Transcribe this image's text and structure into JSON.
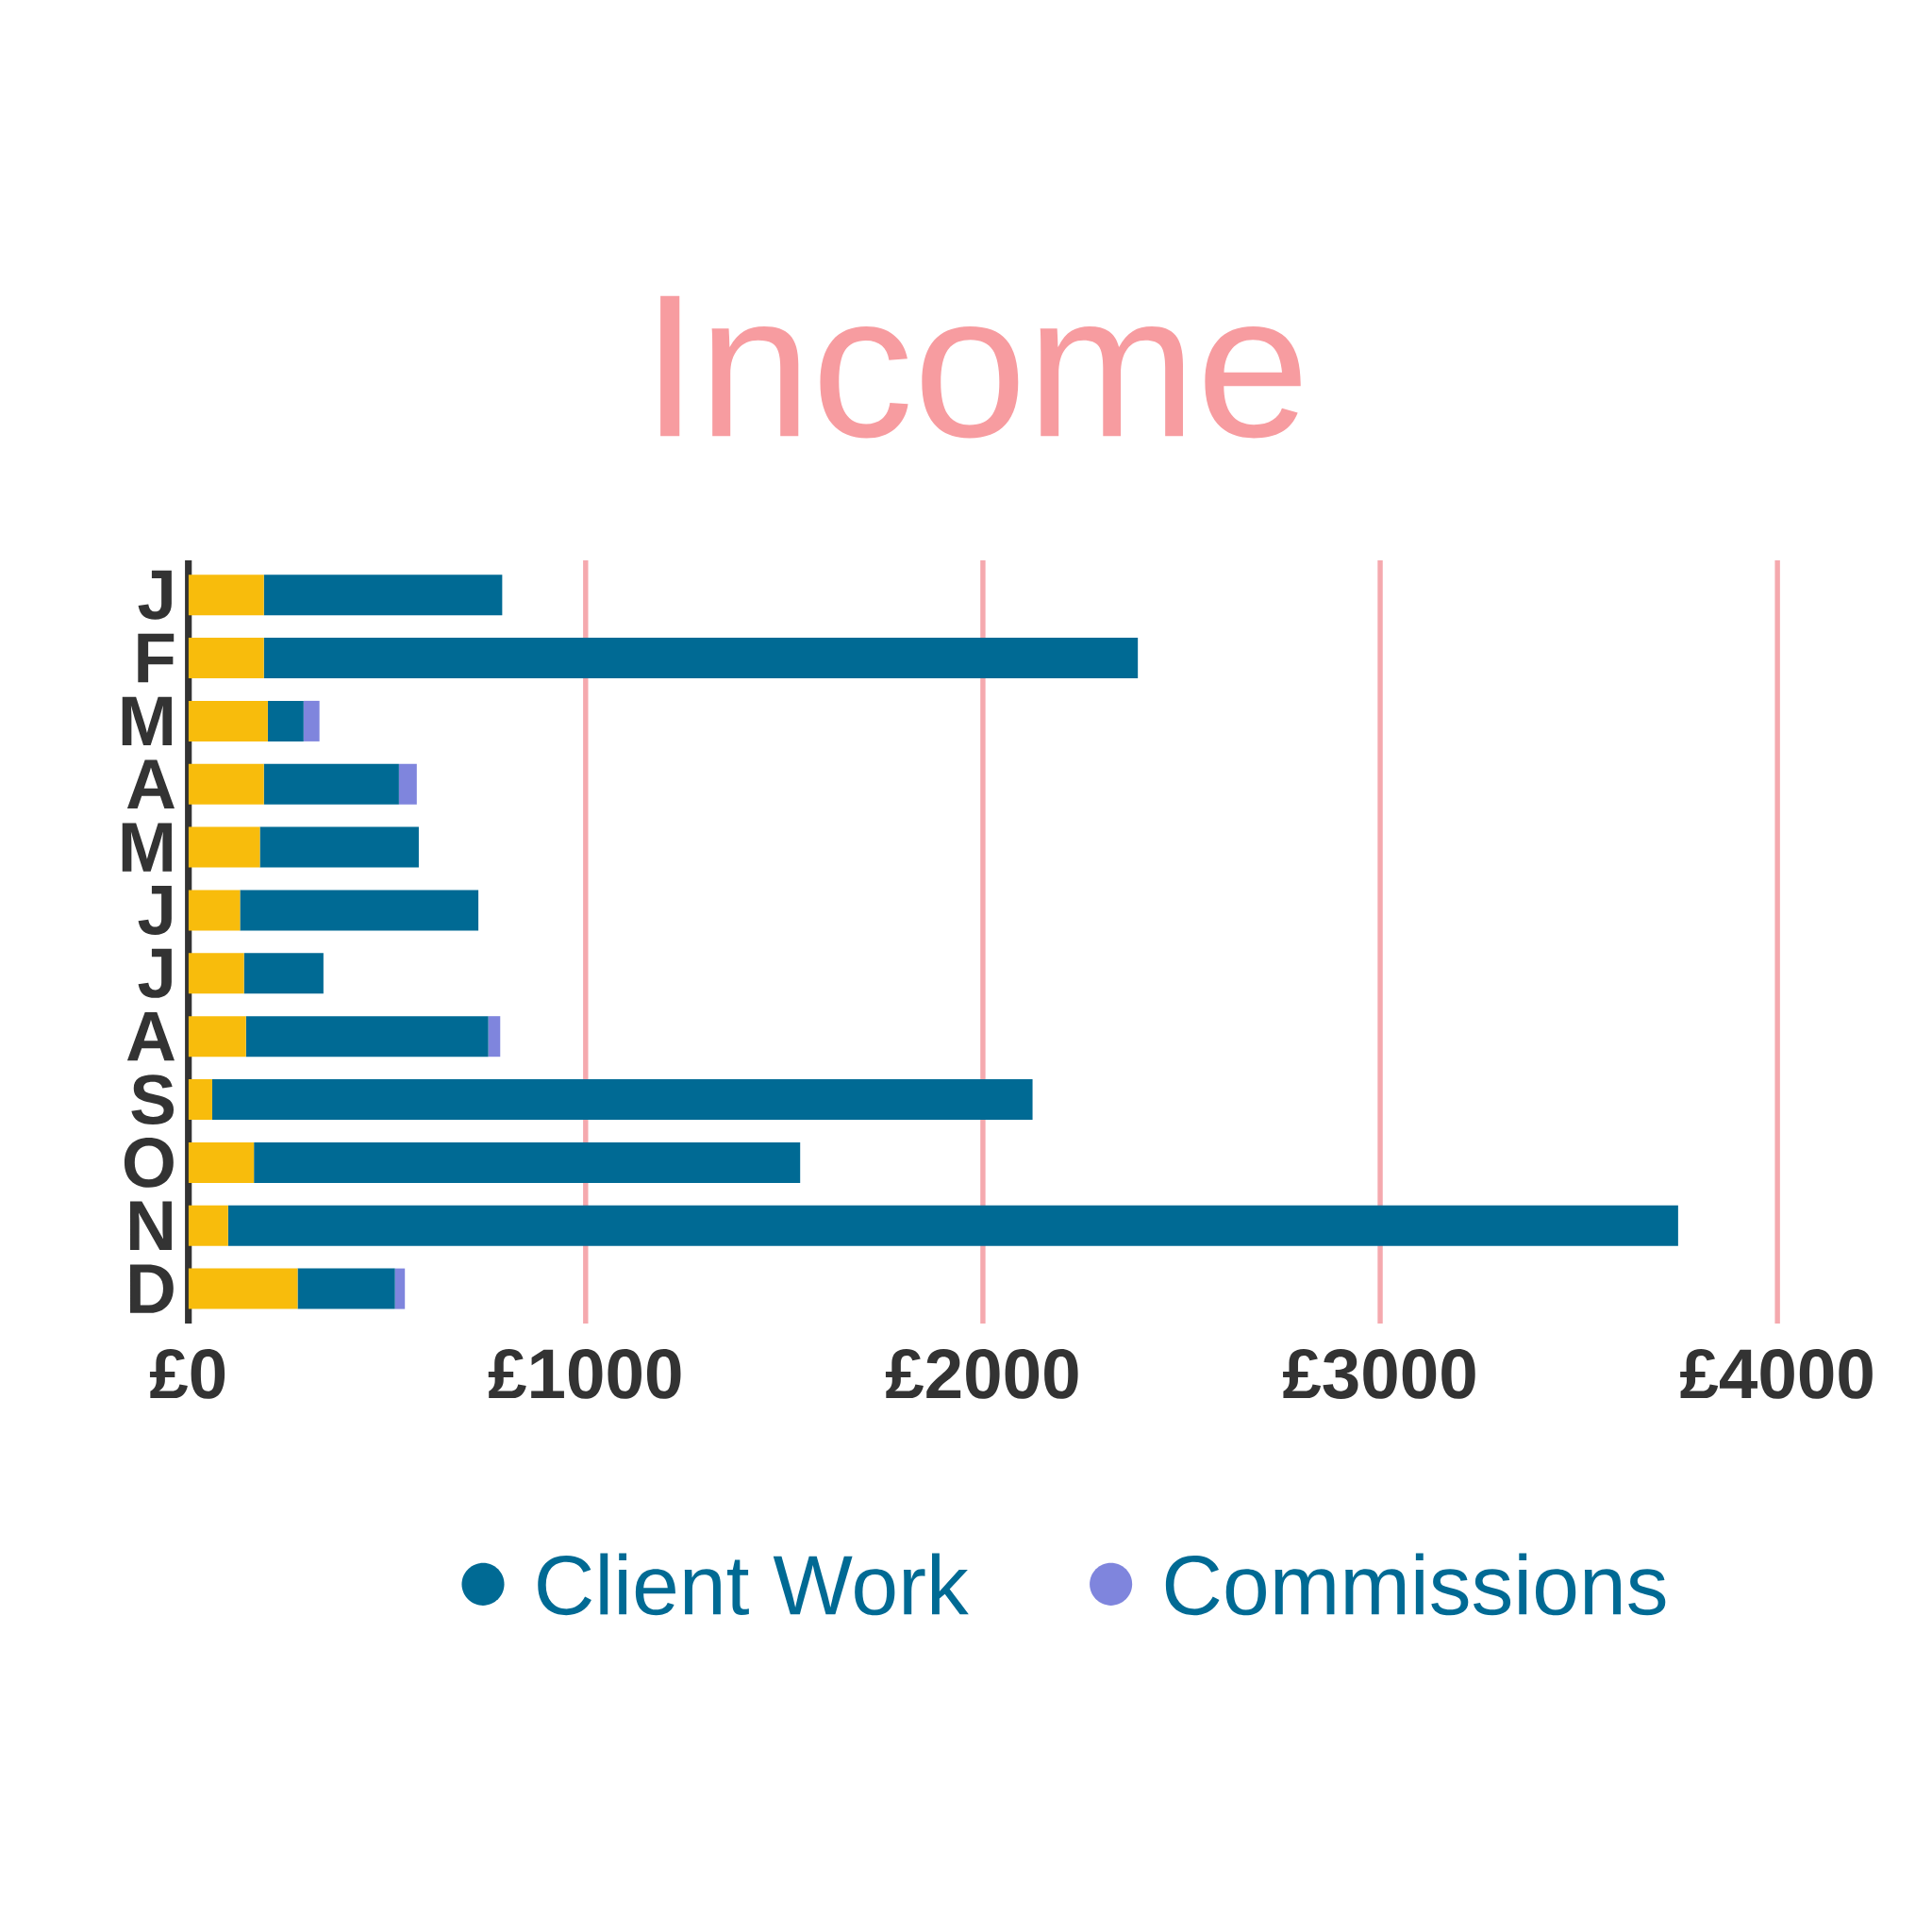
{
  "chart_data": {
    "type": "bar",
    "orientation": "horizontal",
    "stacked": true,
    "title": "Income",
    "categories": [
      "J",
      "F",
      "M",
      "A",
      "M",
      "J",
      "J",
      "A",
      "S",
      "O",
      "N",
      "D"
    ],
    "series": [
      {
        "color": "#f8bc0c",
        "values": [
          190,
          190,
          200,
          190,
          180,
          130,
          140,
          145,
          60,
          165,
          100,
          275
        ]
      },
      {
        "name": "Client Work",
        "color": "#006a94",
        "values": [
          600,
          2200,
          90,
          340,
          400,
          600,
          200,
          610,
          2065,
          1375,
          3650,
          245
        ]
      },
      {
        "name": "Commissions",
        "color": "#7f85dd",
        "values": [
          0,
          0,
          40,
          45,
          0,
          0,
          0,
          30,
          0,
          0,
          0,
          25
        ]
      }
    ],
    "xlim": [
      0,
      4000
    ],
    "xticks": [
      {
        "value": 0,
        "label": "£0"
      },
      {
        "value": 1000,
        "label": "£1000"
      },
      {
        "value": 2000,
        "label": "£2000"
      },
      {
        "value": 3000,
        "label": "£3000"
      },
      {
        "value": 4000,
        "label": "£4000"
      }
    ],
    "grid": "x",
    "legend": "bottom"
  }
}
